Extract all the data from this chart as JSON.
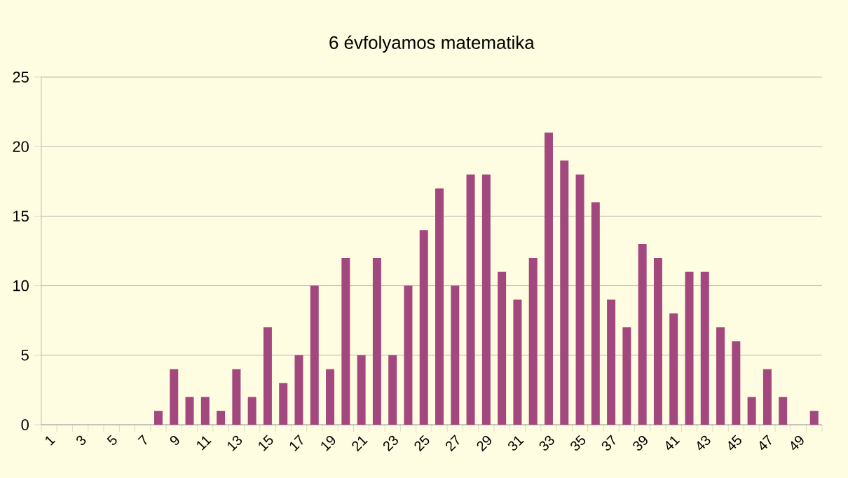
{
  "chart_data": {
    "type": "bar",
    "title": "6 évfolyamos matematika",
    "categories": [
      "1",
      null,
      "3",
      null,
      "5",
      null,
      "7",
      null,
      "9",
      null,
      "11",
      null,
      "13",
      null,
      "15",
      null,
      "17",
      null,
      "19",
      null,
      "21",
      null,
      "23",
      null,
      "25",
      null,
      "27",
      null,
      "29",
      null,
      "31",
      null,
      "33",
      null,
      "35",
      null,
      "37",
      null,
      "39",
      null,
      "41",
      null,
      "43",
      null,
      "45",
      null,
      "47",
      null,
      "49",
      null
    ],
    "values": [
      0,
      0,
      0,
      0,
      0,
      0,
      0,
      1,
      4,
      2,
      2,
      1,
      4,
      2,
      7,
      3,
      5,
      10,
      4,
      12,
      5,
      12,
      5,
      10,
      14,
      17,
      10,
      18,
      18,
      11,
      9,
      12,
      21,
      19,
      18,
      16,
      9,
      7,
      13,
      12,
      8,
      11,
      11,
      7,
      6,
      2,
      4,
      2,
      0,
      1
    ],
    "color": "#a3487e",
    "ylim": [
      0,
      25
    ],
    "yticks": [
      0,
      5,
      10,
      15,
      20,
      25
    ],
    "grid": "y"
  }
}
